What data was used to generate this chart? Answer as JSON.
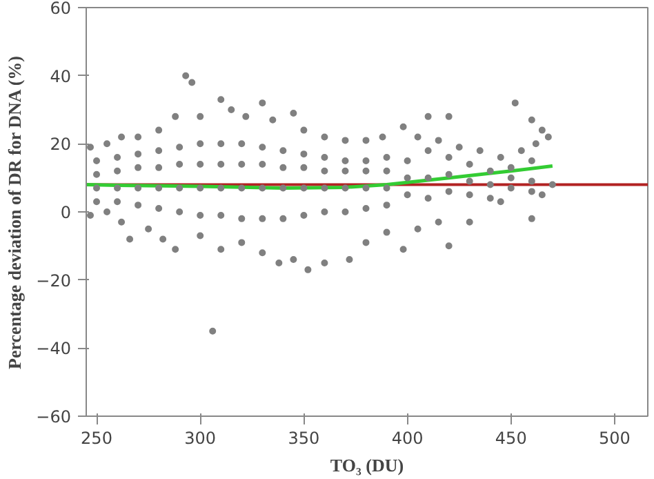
{
  "chart_data": {
    "type": "scatter",
    "xlabel": "TO₃ (DU)",
    "ylabel": "Percentage deviation of DR for DNA (%)",
    "xlim": [
      245,
      516
    ],
    "ylim": [
      -60,
      60
    ],
    "xticks": [
      250,
      300,
      350,
      400,
      450,
      500
    ],
    "yticks": [
      -60,
      -40,
      -20,
      0,
      20,
      40,
      60
    ],
    "grid": false,
    "series": [
      {
        "marker": "circle",
        "color": "#808080",
        "x": [
          306,
          293,
          296,
          452,
          460,
          465,
          420,
          410,
          330,
          310,
          345,
          247,
          255,
          262,
          270,
          280,
          288,
          300,
          315,
          322,
          335,
          350,
          360,
          370,
          380,
          388,
          398,
          405,
          415,
          425,
          435,
          445,
          455,
          462,
          468,
          247,
          255,
          262,
          266,
          275,
          282,
          288,
          300,
          310,
          320,
          330,
          338,
          345,
          352,
          360,
          372,
          380,
          390,
          398,
          405,
          415,
          420,
          430,
          445,
          460,
          465,
          470,
          250,
          260,
          270,
          280,
          290,
          300,
          310,
          320,
          330,
          340,
          350,
          360,
          370,
          380,
          390,
          250,
          260,
          270,
          280,
          290,
          300,
          310,
          320,
          330,
          340,
          350,
          360,
          370,
          380,
          390,
          250,
          260,
          270,
          280,
          290,
          300,
          310,
          320,
          330,
          340,
          350,
          360,
          370,
          380,
          390,
          250,
          260,
          270,
          280,
          290,
          300,
          310,
          320,
          330,
          340,
          350,
          360,
          370,
          380,
          390,
          400,
          410,
          420,
          430,
          440,
          450,
          460,
          400,
          410,
          420,
          430,
          440,
          450,
          460,
          400,
          410,
          420,
          430,
          440,
          450,
          460
        ],
        "values": [
          -35,
          40,
          38,
          32,
          27,
          24,
          28,
          28,
          32,
          33,
          29,
          19,
          20,
          22,
          22,
          24,
          28,
          28,
          30,
          28,
          27,
          24,
          22,
          21,
          21,
          22,
          25,
          22,
          21,
          19,
          18,
          16,
          18,
          20,
          22,
          -1,
          0,
          -3,
          -8,
          -5,
          -8,
          -11,
          -7,
          -11,
          -9,
          -12,
          -15,
          -14,
          -17,
          -15,
          -14,
          -9,
          -6,
          -11,
          -5,
          -3,
          -10,
          -3,
          3,
          -2,
          5,
          8,
          3,
          3,
          2,
          1,
          0,
          -1,
          -1,
          -2,
          -2,
          -2,
          -1,
          0,
          0,
          1,
          2,
          7,
          7,
          7,
          7,
          7,
          7,
          7,
          7,
          7,
          7,
          7,
          7,
          7,
          7,
          7,
          11,
          12,
          13,
          13,
          14,
          14,
          14,
          14,
          14,
          13,
          13,
          12,
          12,
          12,
          12,
          15,
          16,
          17,
          18,
          19,
          20,
          20,
          20,
          19,
          18,
          17,
          16,
          15,
          15,
          16,
          5,
          4,
          6,
          5,
          4,
          7,
          6,
          10,
          10,
          11,
          9,
          8,
          10,
          9,
          15,
          18,
          16,
          14,
          12,
          13,
          15
        ]
      },
      {
        "type": "line",
        "color": "#33cc33",
        "x": [
          245,
          260,
          300,
          340,
          370,
          390,
          420,
          450,
          470
        ],
        "values": [
          8,
          7.8,
          7.5,
          7,
          7.2,
          8,
          10,
          12,
          13.5
        ]
      }
    ],
    "ref_lines": [
      {
        "axis": "y",
        "value": 8,
        "color": "#b22222"
      }
    ]
  }
}
